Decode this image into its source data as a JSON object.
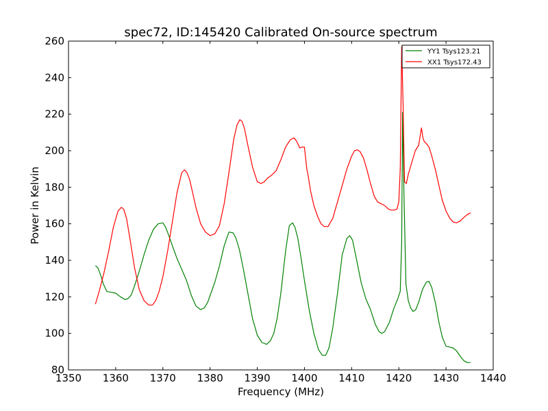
{
  "chart_data": {
    "type": "line",
    "title": "spec72, ID:145420 Calibrated On-source spectrum",
    "xlabel": "Frequency (MHz)",
    "ylabel": "Power in Kelvin",
    "xlim": [
      1350,
      1440
    ],
    "ylim": [
      80,
      260
    ],
    "xticks": [
      1350,
      1360,
      1370,
      1380,
      1390,
      1400,
      1410,
      1420,
      1430,
      1440
    ],
    "yticks": [
      80,
      100,
      120,
      140,
      160,
      180,
      200,
      220,
      240,
      260
    ],
    "legend_position": "top-right",
    "series": [
      {
        "name": "YY1 Tsys123.21",
        "color": "#008000",
        "x": [
          1355.7,
          1356.2,
          1356.8,
          1357.4,
          1358.1,
          1359.0,
          1360.0,
          1361.0,
          1362.0,
          1362.6,
          1363.3,
          1364.0,
          1365.0,
          1366.0,
          1367.0,
          1368.0,
          1369.0,
          1370.0,
          1370.6,
          1371.2,
          1372.0,
          1373.0,
          1374.0,
          1375.0,
          1376.0,
          1377.0,
          1378.0,
          1378.8,
          1379.5,
          1380.2,
          1381.0,
          1382.0,
          1383.0,
          1384.0,
          1384.9,
          1385.5,
          1386.2,
          1387.0,
          1388.0,
          1389.0,
          1390.0,
          1391.0,
          1392.0,
          1392.8,
          1393.5,
          1394.2,
          1395.0,
          1396.0,
          1396.8,
          1397.5,
          1398.0,
          1398.6,
          1399.3,
          1400.0,
          1401.0,
          1402.0,
          1403.0,
          1403.8,
          1404.5,
          1405.2,
          1406.0,
          1407.0,
          1408.0,
          1409.0,
          1409.6,
          1410.2,
          1411.0,
          1412.0,
          1413.0,
          1414.0,
          1415.0,
          1415.8,
          1416.4,
          1417.0,
          1418.0,
          1419.0,
          1419.8,
          1420.3,
          1420.6,
          1420.8,
          1421.1,
          1421.5,
          1422.0,
          1422.5,
          1423.0,
          1423.6,
          1424.2,
          1425.0,
          1425.8,
          1426.4,
          1427.0,
          1427.8,
          1428.5,
          1429.2,
          1430.0,
          1430.8,
          1431.5,
          1432.2,
          1433.0,
          1433.8,
          1434.5,
          1435.2
        ],
        "y": [
          137,
          136,
          132,
          127,
          123,
          122.5,
          122,
          120,
          118.5,
          119,
          121,
          126,
          134,
          143,
          151,
          157,
          160,
          160.5,
          158,
          154,
          148,
          141,
          135,
          129,
          121,
          115,
          113,
          114,
          117,
          122,
          128,
          137,
          148,
          155.5,
          155,
          152,
          146,
          136,
          122,
          108,
          99,
          95,
          94,
          96,
          100,
          108,
          122,
          145,
          159,
          160.5,
          158,
          152,
          141,
          129,
          113,
          100,
          91,
          88,
          88,
          92,
          103,
          122,
          143,
          152,
          153.5,
          151,
          141,
          128,
          119,
          113,
          105,
          101,
          100,
          101,
          106,
          114,
          119,
          123,
          150,
          221,
          175,
          127,
          118,
          114,
          112,
          113,
          117,
          124,
          128,
          128.5,
          125,
          116,
          106,
          98,
          93,
          92.5,
          92,
          90.5,
          87.5,
          85,
          84,
          84
        ]
      },
      {
        "name": "XX1 Tsys172.43",
        "color": "#ff0000",
        "x": [
          1355.7,
          1356.5,
          1357.5,
          1358.5,
          1359.5,
          1360.5,
          1361.2,
          1361.7,
          1362.3,
          1363.0,
          1364.0,
          1365.0,
          1366.0,
          1367.0,
          1367.8,
          1368.5,
          1369.2,
          1370.0,
          1371.0,
          1372.0,
          1373.0,
          1374.0,
          1374.6,
          1375.1,
          1375.7,
          1376.3,
          1377.0,
          1378.0,
          1379.0,
          1380.0,
          1381.0,
          1382.0,
          1383.0,
          1384.0,
          1385.0,
          1385.7,
          1386.3,
          1386.8,
          1387.3,
          1388.0,
          1389.0,
          1390.0,
          1390.8,
          1391.5,
          1392.2,
          1393.0,
          1394.0,
          1395.0,
          1396.0,
          1397.0,
          1397.8,
          1398.4,
          1399.0,
          1399.5,
          1400.0,
          1400.5,
          1400.8,
          1401.3,
          1402.0,
          1402.8,
          1403.5,
          1404.2,
          1405.0,
          1406.0,
          1407.0,
          1408.0,
          1409.0,
          1410.0,
          1410.6,
          1411.2,
          1411.8,
          1412.5,
          1413.2,
          1414.0,
          1414.8,
          1415.5,
          1416.2,
          1417.0,
          1417.8,
          1418.4,
          1419.0,
          1419.6,
          1420.0,
          1420.3,
          1420.6,
          1420.9,
          1421.2,
          1421.6,
          1422.0,
          1422.8,
          1423.5,
          1424.2,
          1424.8,
          1425.1,
          1425.4,
          1425.8,
          1426.4,
          1427.0,
          1427.8,
          1428.5,
          1429.2,
          1430.0,
          1430.8,
          1431.5,
          1432.2,
          1433.0,
          1433.8,
          1434.5,
          1435.2
        ],
        "y": [
          116,
          123,
          133,
          145,
          158,
          167,
          169,
          168,
          163,
          152,
          136,
          124,
          118,
          115.5,
          115.5,
          118,
          123,
          131,
          145,
          161,
          177,
          188,
          189.5,
          188,
          184,
          177,
          169,
          160,
          155.5,
          153.5,
          154.5,
          159,
          171,
          188,
          206,
          214,
          217,
          216,
          212,
          203,
          191,
          183,
          182,
          183,
          185,
          186.5,
          189,
          195,
          202,
          206,
          207,
          205,
          201.5,
          202,
          202,
          190,
          186,
          178,
          170,
          164,
          160,
          158.5,
          158.5,
          163,
          172,
          181,
          190,
          197,
          200,
          200.5,
          199.5,
          196,
          190,
          182,
          175,
          172,
          171,
          170,
          168,
          167.5,
          167.5,
          168,
          172,
          190,
          257,
          226,
          183,
          182,
          187,
          194,
          200,
          203,
          212.5,
          207,
          205,
          204,
          202,
          197,
          189,
          181,
          173,
          167,
          163,
          161,
          160.5,
          161.5,
          163.5,
          165,
          166
        ]
      }
    ]
  }
}
